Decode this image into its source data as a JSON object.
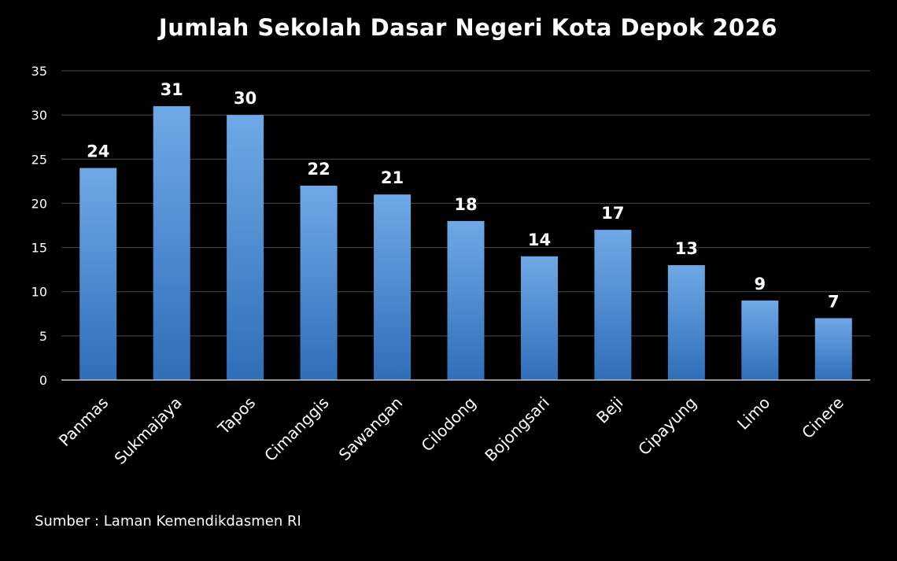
{
  "chart_data": {
    "type": "bar",
    "title": "Jumlah Sekolah Dasar Negeri Kota Depok 2026",
    "categories": [
      "Panmas",
      "Sukmajaya",
      "Tapos",
      "Cimanggis",
      "Sawangan",
      "Cilodong",
      "Bojongsari",
      "Beji",
      "Cipayung",
      "Limo",
      "Cinere"
    ],
    "values": [
      24,
      31,
      30,
      22,
      21,
      18,
      14,
      17,
      13,
      9,
      7
    ],
    "data_labels": [
      "24",
      "31",
      "30",
      "22",
      "21",
      "18",
      "14",
      "17",
      "13",
      "9",
      "7"
    ],
    "xlabel": "",
    "ylabel": "",
    "ylim": [
      0,
      35
    ],
    "yticks": [
      "0",
      "5",
      "10",
      "15",
      "20",
      "25",
      "30",
      "35"
    ],
    "grid": true,
    "legend": "none"
  },
  "source": "Sumber : Laman Kemendikdasmen RI",
  "colors": {
    "background": "#000000",
    "bar_top": "#6fa8e6",
    "bar_bottom": "#2f6fb8",
    "grid": "#4a4a4a",
    "axis": "#bfbfbf",
    "text": "#ffffff"
  }
}
